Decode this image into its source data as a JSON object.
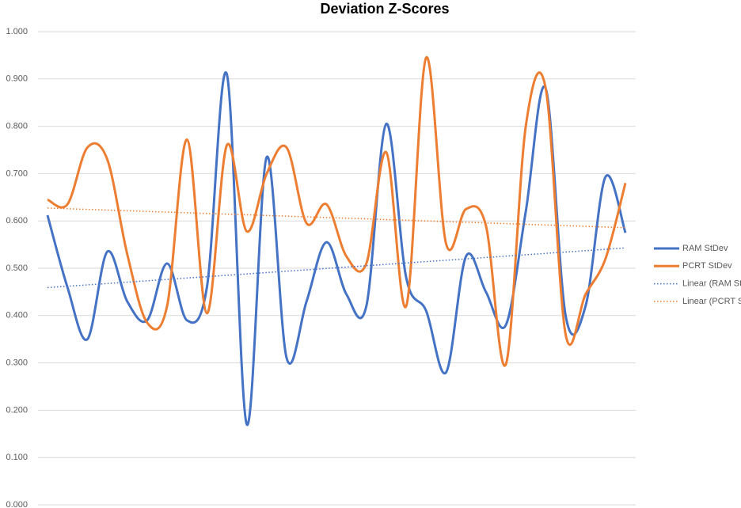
{
  "chart_data": {
    "type": "line",
    "title": "Deviation Z-Scores",
    "categories": [
      null,
      null,
      null,
      null,
      null,
      null,
      null,
      null,
      null,
      null,
      null,
      null,
      null,
      null,
      null,
      null,
      null,
      null,
      null,
      null,
      null,
      null,
      null,
      null,
      null,
      null,
      null,
      null,
      null,
      null
    ],
    "series": [
      {
        "name": "RAM StDev",
        "color": "#4472c4",
        "values": [
          0.612,
          0.46,
          0.35,
          0.535,
          0.43,
          0.39,
          0.51,
          0.39,
          0.46,
          0.91,
          0.17,
          0.735,
          0.31,
          0.43,
          0.555,
          0.445,
          0.42,
          0.805,
          0.48,
          0.41,
          0.28,
          0.525,
          0.45,
          0.38,
          0.62,
          0.88,
          0.4,
          0.42,
          0.693,
          0.575
        ]
      },
      {
        "name": "PCRT StDev",
        "color": "#ed7d31",
        "values": [
          0.645,
          0.635,
          0.755,
          0.73,
          0.53,
          0.385,
          0.42,
          0.772,
          0.405,
          0.76,
          0.578,
          0.7,
          0.755,
          0.595,
          0.635,
          0.525,
          0.51,
          0.745,
          0.42,
          0.945,
          0.552,
          0.625,
          0.59,
          0.297,
          0.8,
          0.88,
          0.36,
          0.445,
          0.52,
          0.68
        ]
      }
    ],
    "trendlines": [
      {
        "name": "Linear (RAM StDev)",
        "series": 0,
        "color": "#4472c4"
      },
      {
        "name": "Linear (PCRT StDev)",
        "series": 1,
        "color": "#ed7d31"
      }
    ],
    "smooth": true,
    "grid": true,
    "ylim": [
      0,
      1
    ],
    "yticks": [
      {
        "value": 0,
        "label": "0.000"
      },
      {
        "value": 0.1,
        "label": "0.100"
      },
      {
        "value": 0.2,
        "label": "0.200"
      },
      {
        "value": 0.3,
        "label": "0.300"
      },
      {
        "value": 0.4,
        "label": "0.400"
      },
      {
        "value": 0.5,
        "label": "0.500"
      },
      {
        "value": 0.6,
        "label": "0.600"
      },
      {
        "value": 0.7,
        "label": "0.700"
      },
      {
        "value": 0.8,
        "label": "0.800"
      },
      {
        "value": 0.9,
        "label": "0.900"
      },
      {
        "value": 1,
        "label": "1.000"
      }
    ],
    "legend": "right"
  }
}
